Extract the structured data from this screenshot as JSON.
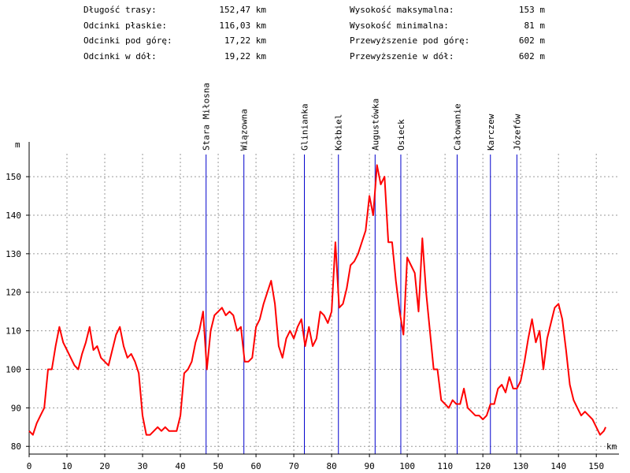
{
  "stats": {
    "left": [
      {
        "label": "Długość trasy:",
        "value": "152,47 km"
      },
      {
        "label": "Odcinki płaskie:",
        "value": "116,03 km"
      },
      {
        "label": "Odcinki pod górę:",
        "value": "17,22 km"
      },
      {
        "label": "Odcinki w dół:",
        "value": "19,22 km"
      }
    ],
    "right": [
      {
        "label": "Wysokość maksymalna:",
        "value": "153 m"
      },
      {
        "label": "Wysokość minimalna:",
        "value": "81 m"
      },
      {
        "label": "Przewyższenie pod górę:",
        "value": "602 m"
      },
      {
        "label": "Przewyższenie w dół:",
        "value": "602 m"
      }
    ]
  },
  "chart_data": {
    "type": "line",
    "title": "",
    "xlabel": "km",
    "ylabel": "m",
    "xlim": [
      0,
      156
    ],
    "ylim": [
      78,
      158
    ],
    "xticks": [
      0,
      10,
      20,
      30,
      40,
      50,
      60,
      70,
      80,
      90,
      100,
      110,
      120,
      130,
      140,
      150
    ],
    "yticks": [
      80,
      90,
      100,
      110,
      120,
      130,
      140,
      150
    ],
    "grid": true,
    "line_color": "#ff0000",
    "marker_color": "#0000cc",
    "markers": [
      {
        "name": "Stara Miłosna",
        "km": 46.8
      },
      {
        "name": "Wiązowna",
        "km": 56.8
      },
      {
        "name": "Glinianka",
        "km": 72.8
      },
      {
        "name": "Kołbiel",
        "km": 81.8
      },
      {
        "name": "Augustówka",
        "km": 91.5
      },
      {
        "name": "Osieck",
        "km": 98.3
      },
      {
        "name": "Całowanie",
        "km": 113.2
      },
      {
        "name": "Karczew",
        "km": 122.0
      },
      {
        "name": "Józefów",
        "km": 129.0
      }
    ],
    "series": [
      {
        "x": [
          0,
          1,
          2,
          3,
          4,
          5,
          6,
          7,
          8,
          9,
          10,
          11,
          12,
          13,
          14,
          15,
          16,
          17,
          18,
          19,
          20,
          21,
          22,
          23,
          24,
          25,
          26,
          27,
          28,
          29,
          30,
          31,
          32,
          33,
          34,
          35,
          36,
          37,
          38,
          39,
          40,
          41,
          42,
          43,
          44,
          45,
          46,
          47,
          48,
          49,
          50,
          51,
          52,
          53,
          54,
          55,
          56,
          57,
          58,
          59,
          60,
          61,
          62,
          63,
          64,
          65,
          66,
          67,
          68,
          69,
          70,
          71,
          72,
          73,
          74,
          75,
          76,
          77,
          78,
          79,
          80,
          81,
          82,
          83,
          84,
          85,
          86,
          87,
          88,
          89,
          90,
          91,
          92,
          93,
          94,
          95,
          96,
          97,
          98,
          99,
          100,
          101,
          102,
          103,
          104,
          105,
          106,
          107,
          108,
          109,
          110,
          111,
          112,
          113,
          114,
          115,
          116,
          117,
          118,
          119,
          120,
          121,
          122,
          123,
          124,
          125,
          126,
          127,
          128,
          129,
          130,
          131,
          132,
          133,
          134,
          135,
          136,
          137,
          138,
          139,
          140,
          141,
          142,
          143,
          144,
          145,
          146,
          147,
          148,
          149,
          150,
          151,
          152,
          152.47
        ],
        "y": [
          84,
          83,
          86,
          88,
          90,
          100,
          100,
          106,
          111,
          107,
          105,
          103,
          101,
          100,
          104,
          107,
          111,
          105,
          106,
          103,
          102,
          101,
          105,
          109,
          111,
          106,
          103,
          104,
          102,
          99,
          88,
          83,
          83,
          84,
          85,
          84,
          85,
          84,
          84,
          84,
          88,
          99,
          100,
          102,
          107,
          110,
          115,
          100,
          110,
          114,
          115,
          116,
          114,
          115,
          114,
          110,
          111,
          102,
          102,
          103,
          111,
          113,
          117,
          120,
          123,
          117,
          106,
          103,
          108,
          110,
          108,
          111,
          113,
          106,
          111,
          106,
          108,
          115,
          114,
          112,
          115,
          133,
          116,
          117,
          121,
          127,
          128,
          130,
          133,
          136,
          145,
          140,
          153,
          148,
          150,
          133,
          133,
          123,
          115,
          109,
          129,
          127,
          125,
          115,
          134,
          120,
          110,
          100,
          100,
          92,
          91,
          90,
          92,
          91,
          91,
          95,
          90,
          89,
          88,
          88,
          87,
          88,
          91,
          91,
          95,
          96,
          94,
          98,
          95,
          95,
          97,
          102,
          108,
          113,
          107,
          110,
          100,
          108,
          112,
          116,
          117,
          113,
          105,
          96,
          92,
          90,
          88,
          89,
          88,
          87,
          85,
          83,
          84,
          85
        ]
      }
    ]
  }
}
